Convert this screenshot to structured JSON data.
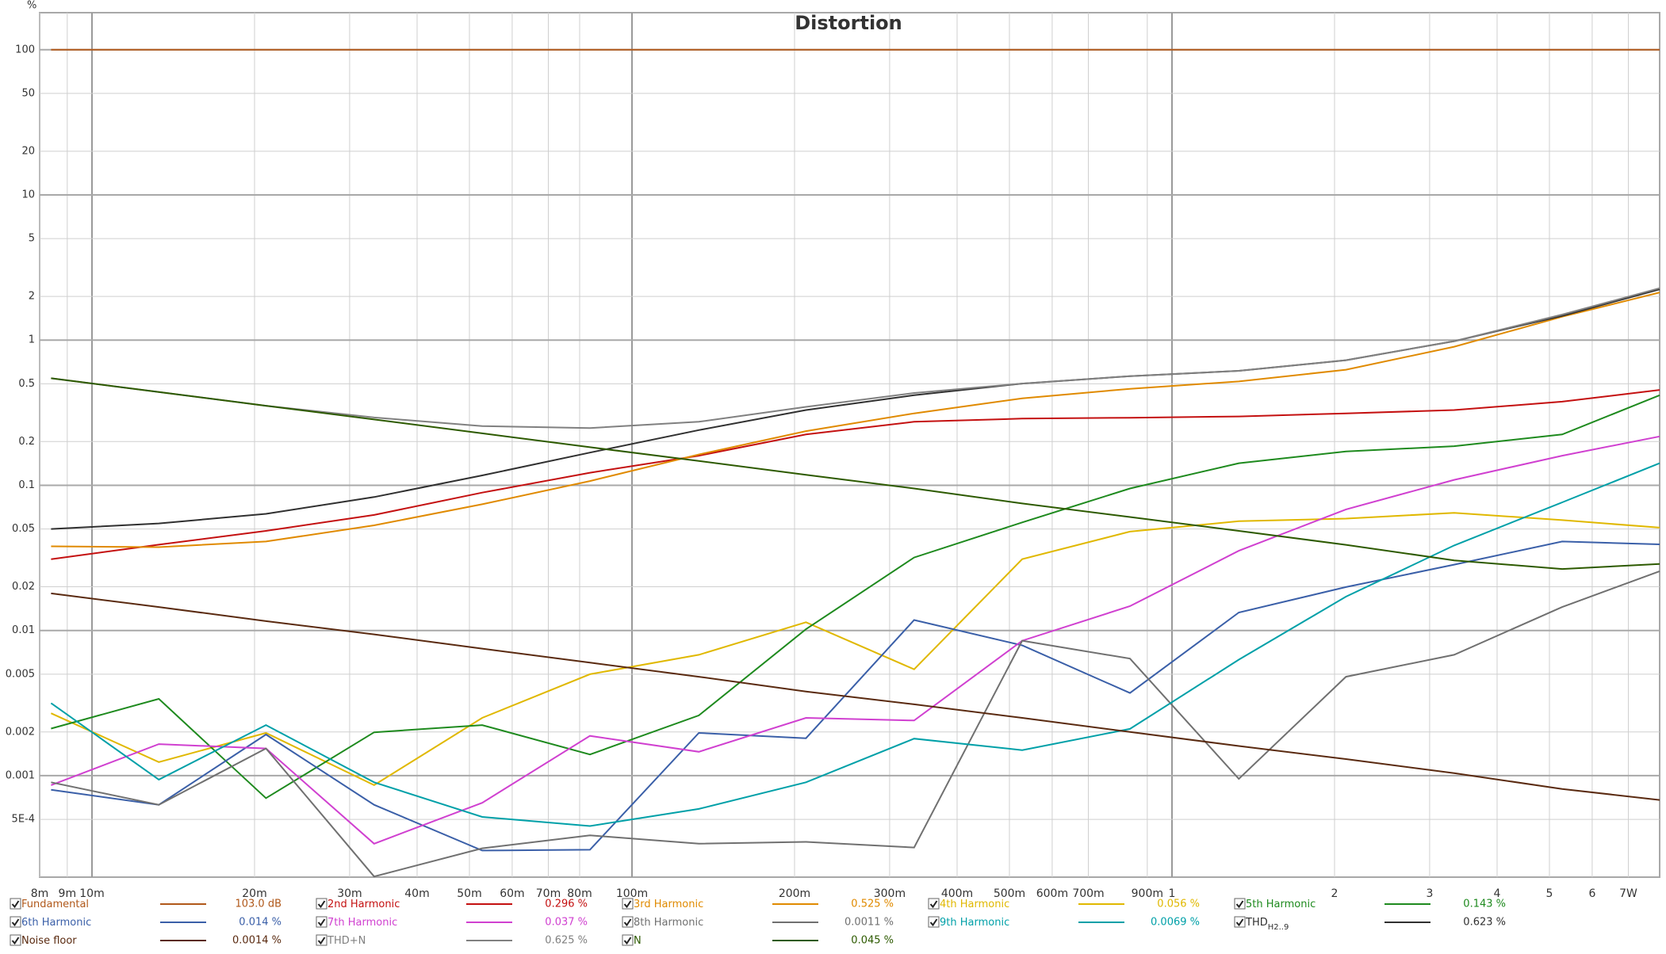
{
  "chart_data": {
    "type": "line",
    "title": "Distortion",
    "y_unit": "%",
    "log_x": true,
    "log_y": true,
    "grid": true,
    "xlim": [
      0.008,
      8
    ],
    "ylim": [
      0.0002,
      180
    ],
    "xticks": [
      {
        "value": 0.008,
        "label": "8m"
      },
      {
        "value": 0.009,
        "label": "9m"
      },
      {
        "value": 0.01,
        "label": "10m"
      },
      {
        "value": 0.02,
        "label": "20m"
      },
      {
        "value": 0.03,
        "label": "30m"
      },
      {
        "value": 0.04,
        "label": "40m"
      },
      {
        "value": 0.05,
        "label": "50m"
      },
      {
        "value": 0.06,
        "label": "60m"
      },
      {
        "value": 0.07,
        "label": "70m"
      },
      {
        "value": 0.08,
        "label": "80m"
      },
      {
        "value": 0.1,
        "label": "100m"
      },
      {
        "value": 0.2,
        "label": "200m"
      },
      {
        "value": 0.3,
        "label": "300m"
      },
      {
        "value": 0.4,
        "label": "400m"
      },
      {
        "value": 0.5,
        "label": "500m"
      },
      {
        "value": 0.6,
        "label": "600m"
      },
      {
        "value": 0.7,
        "label": "700m"
      },
      {
        "value": 0.9,
        "label": "900m"
      },
      1,
      2,
      3,
      4,
      5,
      6,
      {
        "value": 7,
        "label": "7W"
      }
    ],
    "yticks": [
      100,
      50,
      20,
      10,
      5,
      2,
      1,
      0.5,
      0.2,
      0.1,
      0.05,
      0.02,
      0.01,
      0.005,
      0.002,
      0.001,
      {
        "value": 0.0005,
        "label": "5E-4"
      }
    ],
    "x": [
      0.0084,
      0.0133,
      0.021,
      0.0333,
      0.0528,
      0.0836,
      0.133,
      0.21,
      0.333,
      0.528,
      0.836,
      1.33,
      2.1,
      3.33,
      5.28,
      8
    ],
    "series": [
      {
        "name": "Fundamental",
        "color": "#b0581a",
        "legend_value": "103.0 dB",
        "values": [
          100,
          100,
          100,
          100,
          100,
          100,
          100,
          100,
          100,
          100,
          100,
          100,
          100,
          100,
          100,
          100
        ]
      },
      {
        "name": "2nd Harmonic",
        "color": "#c41010",
        "legend_value": "0.296 %",
        "values": [
          0.031,
          0.039,
          0.0485,
          0.0625,
          0.089,
          0.122,
          0.16,
          0.224,
          0.274,
          0.288,
          0.292,
          0.298,
          0.313,
          0.33,
          0.377,
          0.454
        ]
      },
      {
        "name": "3rd Harmonic",
        "color": "#e08a00",
        "legend_value": "0.525 %",
        "values": [
          0.038,
          0.0375,
          0.041,
          0.053,
          0.074,
          0.107,
          0.163,
          0.236,
          0.313,
          0.397,
          0.462,
          0.519,
          0.625,
          0.9,
          1.45,
          2.13
        ]
      },
      {
        "name": "4th Harmonic",
        "color": "#e0b800",
        "legend_value": "0.056 %",
        "values": [
          0.00269,
          0.00124,
          0.00197,
          0.00086,
          0.0025,
          0.005,
          0.0068,
          0.0114,
          0.0054,
          0.031,
          0.048,
          0.0566,
          0.059,
          0.0646,
          0.0576,
          0.0511
        ]
      },
      {
        "name": "5th Harmonic",
        "color": "#1e8a1e",
        "legend_value": "0.143 %",
        "values": [
          0.00211,
          0.00338,
          0.0007,
          0.00199,
          0.00223,
          0.0014,
          0.0026,
          0.0102,
          0.0318,
          0.0555,
          0.095,
          0.142,
          0.171,
          0.186,
          0.224,
          0.417
        ]
      },
      {
        "name": "6th Harmonic",
        "color": "#3a5fa8",
        "legend_value": "0.014 %",
        "values": [
          0.0008,
          0.00063,
          0.00192,
          0.00063,
          0.000305,
          0.000309,
          0.00197,
          0.00181,
          0.0118,
          0.0079,
          0.00371,
          0.0133,
          0.0199,
          0.0284,
          0.041,
          0.0392
        ]
      },
      {
        "name": "7th Harmonic",
        "color": "#d040d0",
        "legend_value": "0.037 %",
        "values": [
          0.00086,
          0.00165,
          0.00154,
          0.00034,
          0.00065,
          0.00188,
          0.00146,
          0.0025,
          0.0024,
          0.0085,
          0.0147,
          0.0354,
          0.0682,
          0.109,
          0.16,
          0.217
        ]
      },
      {
        "name": "8th Harmonic",
        "color": "#707070",
        "legend_value": "0.0011 %",
        "values": [
          0.0009,
          0.00063,
          0.00154,
          0.000202,
          0.000316,
          0.000388,
          0.00034,
          0.00035,
          0.00032,
          0.0085,
          0.0064,
          0.00095,
          0.0048,
          0.0068,
          0.0145,
          0.0256
        ]
      },
      {
        "name": "9th Harmonic",
        "color": "#00a0a8",
        "legend_value": "0.0069 %",
        "values": [
          0.00316,
          0.00094,
          0.00223,
          0.0009,
          0.00052,
          0.00045,
          0.00059,
          0.0009,
          0.0018,
          0.0015,
          0.0021,
          0.0063,
          0.0171,
          0.0385,
          0.0763,
          0.142
        ]
      },
      {
        "name": "THD",
        "name_sub": "H2..9",
        "color": "#303030",
        "legend_value": "0.623 %",
        "values": [
          0.05,
          0.0546,
          0.0636,
          0.083,
          0.117,
          0.168,
          0.24,
          0.33,
          0.417,
          0.502,
          0.565,
          0.614,
          0.727,
          0.983,
          1.47,
          2.24
        ]
      },
      {
        "name": "Noise floor",
        "color": "#5a2a10",
        "legend_value": "0.0014 %",
        "values": [
          0.018,
          0.0145,
          0.0116,
          0.0094,
          0.0075,
          0.006,
          0.0048,
          0.0038,
          0.0031,
          0.0025,
          0.002,
          0.0016,
          0.0013,
          0.00104,
          0.00081,
          0.00068
        ]
      },
      {
        "name": "THD+N",
        "color": "#808080",
        "legend_value": "0.625 %",
        "values": [
          0.546,
          0.439,
          0.353,
          0.293,
          0.256,
          0.248,
          0.274,
          0.347,
          0.432,
          0.502,
          0.565,
          0.614,
          0.727,
          0.983,
          1.5,
          2.28
        ]
      },
      {
        "name": "N",
        "color": "#2d5a00",
        "legend_value": "0.045 %",
        "values": [
          0.546,
          0.439,
          0.353,
          0.284,
          0.228,
          0.183,
          0.147,
          0.118,
          0.095,
          0.075,
          0.0605,
          0.0485,
          0.0389,
          0.0304,
          0.0265,
          0.0287
        ]
      }
    ]
  }
}
